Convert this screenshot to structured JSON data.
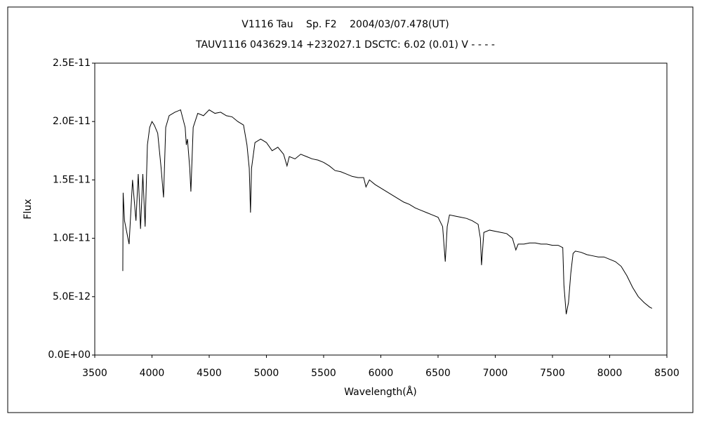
{
  "chart_data": {
    "type": "line",
    "title": "V1116 Tau　 Sp. F2　 2004/03/07.478(UT)",
    "subtitle": "TAUV1116 043629.14 +232027.1 DSCTC: 6.02 (0.01) V - - - -",
    "x_label": "Wavelength(Å)",
    "y_label": "Flux",
    "xlim": [
      3500,
      8500
    ],
    "xticks": [
      3500,
      4000,
      4500,
      5000,
      5500,
      6000,
      6500,
      7000,
      7500,
      8000,
      8500
    ],
    "ylim": [
      0,
      2.5e-11
    ],
    "yticks": [
      {
        "value": 0,
        "label": "0.0E+00"
      },
      {
        "value": 5e-12,
        "label": "5.0E-12"
      },
      {
        "value": 1e-11,
        "label": "1.0E-11"
      },
      {
        "value": 1.5e-11,
        "label": "1.5E-11"
      },
      {
        "value": 2e-11,
        "label": "2.0E-11"
      },
      {
        "value": 2.5e-11,
        "label": "2.5E-11"
      }
    ],
    "color": "#000000",
    "x": [
      3745,
      3748,
      3760,
      3790,
      3800,
      3830,
      3860,
      3880,
      3900,
      3920,
      3940,
      3960,
      3980,
      4000,
      4020,
      4050,
      4080,
      4101,
      4120,
      4150,
      4200,
      4250,
      4290,
      4300,
      4310,
      4330,
      4340,
      4360,
      4400,
      4450,
      4500,
      4550,
      4600,
      4650,
      4700,
      4750,
      4800,
      4830,
      4850,
      4861,
      4870,
      4900,
      4950,
      5000,
      5050,
      5100,
      5150,
      5180,
      5200,
      5250,
      5300,
      5350,
      5400,
      5450,
      5500,
      5550,
      5600,
      5650,
      5700,
      5750,
      5800,
      5850,
      5870,
      5900,
      5950,
      6000,
      6050,
      6100,
      6150,
      6200,
      6250,
      6300,
      6350,
      6400,
      6450,
      6500,
      6540,
      6563,
      6580,
      6600,
      6650,
      6700,
      6750,
      6800,
      6850,
      6870,
      6880,
      6900,
      6950,
      7000,
      7050,
      7100,
      7150,
      7180,
      7200,
      7250,
      7300,
      7350,
      7400,
      7450,
      7500,
      7550,
      7590,
      7600,
      7620,
      7640,
      7660,
      7680,
      7700,
      7750,
      7800,
      7850,
      7900,
      7950,
      8000,
      8050,
      8100,
      8150,
      8200,
      8250,
      8300,
      8350,
      8370
    ],
    "values": [
      7.2e-12,
      1.39e-11,
      1.15e-11,
      1e-11,
      9.5e-12,
      1.5e-11,
      1.15e-11,
      1.55e-11,
      1.08e-11,
      1.55e-11,
      1.1e-11,
      1.8e-11,
      1.95e-11,
      2e-11,
      1.97e-11,
      1.9e-11,
      1.6e-11,
      1.35e-11,
      1.95e-11,
      2.05e-11,
      2.08e-11,
      2.1e-11,
      1.95e-11,
      1.8e-11,
      1.85e-11,
      1.6e-11,
      1.4e-11,
      1.95e-11,
      2.07e-11,
      2.05e-11,
      2.1e-11,
      2.07e-11,
      2.08e-11,
      2.05e-11,
      2.04e-11,
      2e-11,
      1.97e-11,
      1.8e-11,
      1.6e-11,
      1.22e-11,
      1.6e-11,
      1.82e-11,
      1.85e-11,
      1.82e-11,
      1.75e-11,
      1.78e-11,
      1.72e-11,
      1.62e-11,
      1.7e-11,
      1.68e-11,
      1.72e-11,
      1.7e-11,
      1.68e-11,
      1.67e-11,
      1.65e-11,
      1.62e-11,
      1.58e-11,
      1.57e-11,
      1.55e-11,
      1.53e-11,
      1.52e-11,
      1.52e-11,
      1.44e-11,
      1.5e-11,
      1.46e-11,
      1.43e-11,
      1.4e-11,
      1.37e-11,
      1.34e-11,
      1.31e-11,
      1.29e-11,
      1.26e-11,
      1.24e-11,
      1.22e-11,
      1.2e-11,
      1.18e-11,
      1.1e-11,
      8e-12,
      1.1e-11,
      1.2e-11,
      1.19e-11,
      1.18e-11,
      1.17e-11,
      1.15e-11,
      1.12e-11,
      1e-11,
      7.7e-12,
      1.05e-11,
      1.07e-11,
      1.06e-11,
      1.05e-11,
      1.04e-11,
      1e-11,
      9e-12,
      9.5e-12,
      9.5e-12,
      9.6e-12,
      9.6e-12,
      9.5e-12,
      9.5e-12,
      9.4e-12,
      9.4e-12,
      9.2e-12,
      6e-12,
      3.5e-12,
      4.5e-12,
      7e-12,
      8.7e-12,
      8.9e-12,
      8.8e-12,
      8.6e-12,
      8.5e-12,
      8.4e-12,
      8.4e-12,
      8.2e-12,
      8e-12,
      7.6e-12,
      6.8e-12,
      5.8e-12,
      5e-12,
      4.5e-12,
      4.1e-12,
      4e-12
    ]
  }
}
